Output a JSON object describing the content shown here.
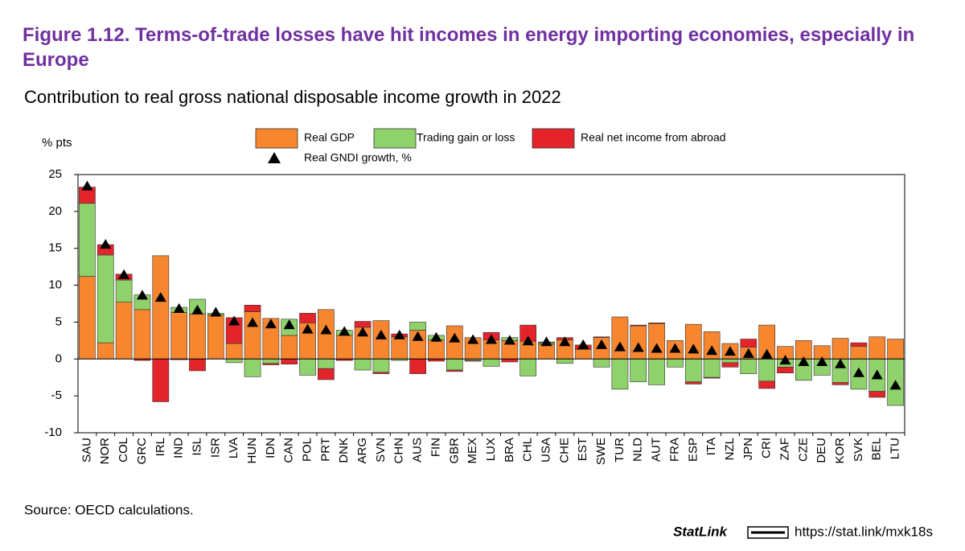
{
  "chart_data": {
    "type": "stacked_bar",
    "title": "Figure 1.12. Terms-of-trade losses have hit incomes in energy importing economies, especially in Europe",
    "subtitle": "Contribution to real gross national disposable income growth in 2022",
    "y_label": "% pts",
    "categories": [
      "SAU",
      "NOR",
      "COL",
      "GRC",
      "IRL",
      "IND",
      "ISL",
      "ISR",
      "LVA",
      "HUN",
      "IDN",
      "CAN",
      "POL",
      "PRT",
      "DNK",
      "ARG",
      "SVN",
      "CHN",
      "AUS",
      "FIN",
      "GBR",
      "MEX",
      "LUX",
      "BRA",
      "CHL",
      "USA",
      "CHE",
      "EST",
      "SWE",
      "TUR",
      "NLD",
      "AUT",
      "FRA",
      "ESP",
      "ITA",
      "NZL",
      "JPN",
      "CRI",
      "ZAF",
      "CZE",
      "DEU",
      "KOR",
      "SVK",
      "BEL",
      "LTU"
    ],
    "series": [
      {
        "name": "Real GDP",
        "color": "#f7862f",
        "values": [
          11.2,
          2.2,
          7.7,
          6.7,
          14.0,
          6.3,
          6.1,
          6.0,
          2.1,
          6.4,
          5.5,
          3.2,
          4.9,
          6.7,
          3.2,
          4.3,
          5.2,
          3.0,
          3.9,
          2.6,
          4.5,
          2.9,
          2.6,
          2.5,
          2.4,
          2.0,
          2.6,
          1.3,
          2.9,
          5.7,
          4.5,
          4.8,
          2.5,
          4.7,
          3.7,
          2.1,
          1.6,
          4.6,
          1.7,
          2.5,
          1.8,
          2.8,
          1.7,
          3.0,
          2.7
        ]
      },
      {
        "name": "Trading gain or loss",
        "color": "#8fd16a",
        "values": [
          9.9,
          11.9,
          3.0,
          2.0,
          0,
          0.7,
          2.0,
          0.2,
          -0.5,
          -2.4,
          -0.6,
          2.2,
          -2.2,
          -1.3,
          0.7,
          -1.5,
          -1.8,
          -0.2,
          1.1,
          0.6,
          -1.5,
          -0.2,
          -1.0,
          0.4,
          -2.3,
          0.2,
          -0.6,
          0,
          -1.1,
          -4.1,
          -3.1,
          -3.5,
          -1.1,
          -3.1,
          -2.5,
          -0.5,
          -2.0,
          -3.0,
          -1.1,
          -2.9,
          -2.2,
          -3.2,
          -4.1,
          -4.4,
          -6.3
        ]
      },
      {
        "name": "Real net income from abroad",
        "color": "#e3242b",
        "values": [
          2.2,
          1.4,
          0.8,
          -0.2,
          -5.8,
          -0.1,
          -1.6,
          0,
          3.5,
          0.9,
          -0.2,
          -0.7,
          1.3,
          -1.5,
          -0.2,
          0.8,
          -0.2,
          0.4,
          -2.0,
          -0.3,
          -0.2,
          -0.1,
          1.0,
          -0.4,
          2.2,
          0.1,
          0.3,
          0.6,
          0.1,
          0,
          0.1,
          0.1,
          0,
          -0.3,
          -0.1,
          -0.6,
          1.1,
          -1.0,
          -0.8,
          0,
          0,
          -0.3,
          0.5,
          -0.8,
          0
        ]
      }
    ],
    "markers": {
      "name": "Real GNDI growth, %",
      "color": "#000000",
      "values": [
        23.4,
        15.5,
        11.4,
        8.6,
        8.3,
        6.8,
        6.6,
        6.3,
        5.1,
        4.9,
        4.7,
        4.6,
        4.0,
        3.9,
        3.7,
        3.6,
        3.2,
        3.2,
        3.0,
        2.9,
        2.8,
        2.6,
        2.6,
        2.5,
        2.4,
        2.3,
        2.3,
        1.9,
        1.9,
        1.6,
        1.5,
        1.4,
        1.4,
        1.3,
        1.1,
        1.0,
        0.7,
        0.6,
        -0.2,
        -0.4,
        -0.4,
        -0.7,
        -1.9,
        -2.2,
        -3.6
      ]
    },
    "ylim": [
      -10,
      25
    ],
    "yticks": [
      -10,
      -5,
      0,
      5,
      10,
      15,
      20,
      25
    ],
    "grid": false,
    "source": "Source: OECD calculations.",
    "statlink": "StatLink",
    "url": "https://stat.link/mxk18s"
  }
}
